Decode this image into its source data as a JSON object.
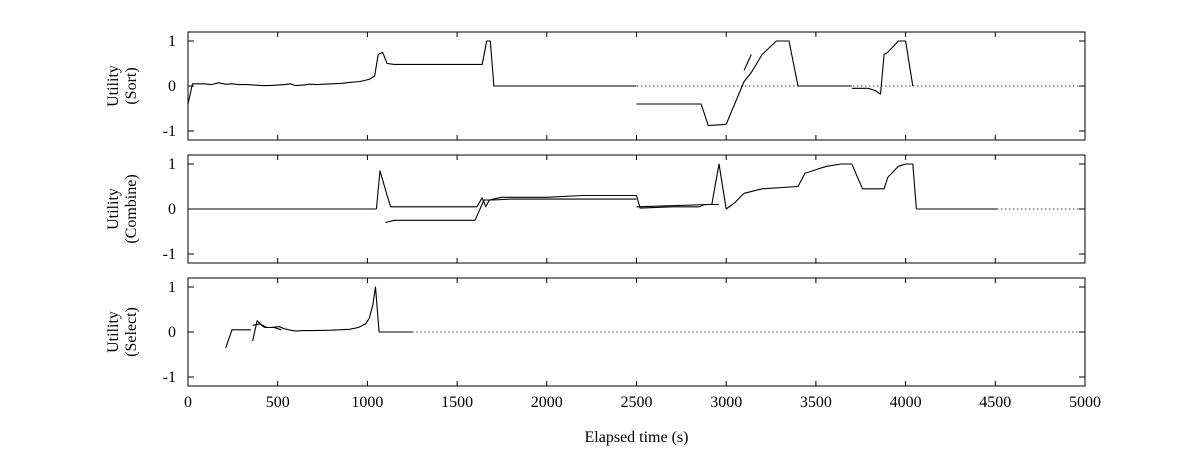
{
  "chart_data": [
    {
      "type": "line",
      "ylabel": [
        "Utility",
        "(Sort)"
      ],
      "xlim": [
        0,
        5000
      ],
      "ylim": [
        -1.2,
        1.2
      ],
      "yticks": [
        1,
        0,
        -1
      ],
      "ytick_labels": [
        "1",
        "0",
        "-1"
      ],
      "reference_line": {
        "y": 0,
        "style": "dotted",
        "x_range": [
          1700,
          5000
        ]
      },
      "series": [
        {
          "segments": [
            {
              "x": [
                0,
                25,
                90,
                130,
                170,
                210,
                250,
                280,
                330,
                370,
                410,
                450,
                500,
                540,
                570,
                600,
                640,
                680,
                720,
                760,
                800,
                860,
                900,
                960,
                1010,
                1040,
                1060,
                1085,
                1110,
                1150,
                1300,
                1500,
                1640,
                1665,
                1685,
                1705
              ],
              "y": [
                -0.4,
                0.05,
                0.05,
                0.03,
                0.07,
                0.04,
                0.05,
                0.03,
                0.03,
                0.02,
                0.01,
                0.01,
                0.02,
                0.03,
                0.05,
                0.01,
                0.02,
                0.04,
                0.03,
                0.04,
                0.05,
                0.06,
                0.08,
                0.1,
                0.15,
                0.22,
                0.7,
                0.75,
                0.5,
                0.48,
                0.48,
                0.48,
                0.48,
                1.0,
                1.0,
                0.0
              ]
            },
            {
              "x": [
                1705,
                2500
              ],
              "y": [
                0,
                0
              ]
            },
            {
              "x": [
                2500,
                2860,
                2900,
                3000,
                3100,
                3140,
                3200,
                3280,
                3310,
                3350,
                3400
              ],
              "y": [
                -0.4,
                -0.4,
                -0.88,
                -0.85,
                0.1,
                0.3,
                0.7,
                1.0,
                1.0,
                1.0,
                0.0
              ]
            },
            {
              "x": [
                3100,
                3140
              ],
              "y": [
                0.35,
                0.7
              ]
            },
            {
              "x": [
                3400,
                3700
              ],
              "y": [
                0,
                0
              ]
            },
            {
              "x": [
                3700,
                3790,
                3830,
                3860,
                3880,
                3900,
                3960,
                4000,
                4040
              ],
              "y": [
                -0.05,
                -0.05,
                -0.1,
                -0.18,
                0.7,
                0.75,
                1.0,
                1.0,
                0.0
              ]
            }
          ]
        }
      ]
    },
    {
      "type": "line",
      "ylabel": [
        "Utility",
        "(Combine)"
      ],
      "xlim": [
        0,
        5000
      ],
      "ylim": [
        -1.2,
        1.2
      ],
      "yticks": [
        1,
        0,
        -1
      ],
      "ytick_labels": [
        "1",
        "0",
        "-1"
      ],
      "reference_line": {
        "y": 0,
        "style": "dotted",
        "x_range": [
          4510,
          5000
        ]
      },
      "series": [
        {
          "segments": [
            {
              "x": [
                0,
                1050
              ],
              "y": [
                0,
                0
              ]
            },
            {
              "x": [
                1050,
                1070,
                1110,
                1130,
                1610,
                1640,
                1660,
                1680,
                1700,
                1750,
                2000,
                2200,
                2500,
                2520,
                2700,
                2850,
                2880,
                2920,
                2960,
                3000,
                3050,
                3100,
                3200,
                3400,
                3440,
                3460,
                3520,
                3560,
                3640,
                3650,
                3680,
                3700,
                3760,
                3820,
                3850,
                3880,
                3900,
                3960,
                4000,
                4040,
                4060
              ],
              "y": [
                0,
                0.85,
                0.3,
                0.05,
                0.05,
                0.25,
                0.05,
                0.2,
                0.22,
                0.26,
                0.26,
                0.3,
                0.3,
                0.02,
                0.05,
                0.05,
                0.1,
                0.1,
                1.0,
                0.0,
                0.15,
                0.35,
                0.45,
                0.5,
                0.8,
                0.82,
                0.9,
                0.95,
                1.0,
                1.0,
                1.0,
                1.0,
                0.45,
                0.45,
                0.45,
                0.45,
                0.7,
                0.95,
                1.0,
                1.0,
                0.0
              ]
            },
            {
              "x": [
                1100,
                1150,
                1600,
                1650,
                1700,
                1800,
                2500
              ],
              "y": [
                -0.3,
                -0.25,
                -0.25,
                0.2,
                0.2,
                0.22,
                0.22
              ]
            },
            {
              "x": [
                2500,
                2900,
                2960
              ],
              "y": [
                0.05,
                0.1,
                0.1
              ]
            },
            {
              "x": [
                4060,
                4510
              ],
              "y": [
                0,
                0
              ]
            }
          ]
        }
      ]
    },
    {
      "type": "line",
      "ylabel": [
        "Utility",
        "(Select)"
      ],
      "xlim": [
        0,
        5000
      ],
      "ylim": [
        -1.2,
        1.2
      ],
      "yticks": [
        1,
        0,
        -1
      ],
      "ytick_labels": [
        "1",
        "0",
        "-1"
      ],
      "reference_line": {
        "y": 0,
        "style": "dotted",
        "x_range": [
          1250,
          5000
        ]
      },
      "series": [
        {
          "segments": [
            {
              "x": [
                210,
                245,
                350
              ],
              "y": [
                -0.35,
                0.05,
                0.05
              ]
            },
            {
              "x": [
                360,
                385,
                420,
                430,
                460,
                510,
                530,
                560,
                600,
                640,
                700,
                800,
                900,
                950,
                990,
                1010,
                1030,
                1045,
                1065,
                1250
              ],
              "y": [
                -0.2,
                0.25,
                0.12,
                0.1,
                0.1,
                0.12,
                0.08,
                0.05,
                0.02,
                0.03,
                0.03,
                0.04,
                0.06,
                0.1,
                0.18,
                0.3,
                0.6,
                1.0,
                0.0,
                0.0
              ]
            },
            {
              "x": [
                360,
                400,
                440,
                480,
                520
              ],
              "y": [
                0.15,
                0.18,
                0.1,
                0.1,
                0.05
              ]
            }
          ]
        }
      ],
      "xticks": [
        0,
        500,
        1000,
        1500,
        2000,
        2500,
        3000,
        3500,
        4000,
        4500,
        5000
      ],
      "xtick_labels": [
        "0",
        "500",
        "1000",
        "1500",
        "2000",
        "2500",
        "3000",
        "3500",
        "4000",
        "4500",
        "5000"
      ],
      "xlabel": "Elapsed time (s)"
    }
  ]
}
